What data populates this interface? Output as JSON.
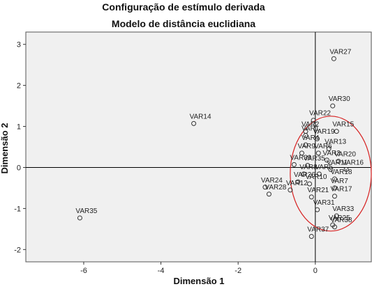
{
  "chart_data": {
    "type": "scatter",
    "title": "Configuração de estímulo derivada",
    "subtitle": "Modelo de distância euclidiana",
    "xlabel": "Dimensão 1",
    "ylabel": "Dimensão 2",
    "xlim": [
      -7.5,
      1.45
    ],
    "ylim": [
      -2.3,
      3.3
    ],
    "xticks": [
      -6,
      -4,
      -2,
      0
    ],
    "yticks": [
      -2,
      -1,
      0,
      1,
      2,
      3
    ],
    "reference_lines": {
      "x": 0,
      "y": 0
    },
    "colors": {
      "background": "#f0f0f0",
      "marker": "#333333",
      "ellipse": "#d62020",
      "reference": "#000000"
    },
    "ellipse": {
      "cx": 0.4,
      "cy": -0.15,
      "rx": 1.05,
      "ry": 1.4
    },
    "points": [
      {
        "label": "VAR27",
        "x": 0.48,
        "y": 2.65
      },
      {
        "label": "VAR30",
        "x": 0.45,
        "y": 1.5
      },
      {
        "label": "VAR14",
        "x": -3.15,
        "y": 1.07
      },
      {
        "label": "VAR22",
        "x": -0.05,
        "y": 1.15
      },
      {
        "label": "VAR2",
        "x": -0.25,
        "y": 0.88
      },
      {
        "label": "VAR15",
        "x": 0.55,
        "y": 0.88
      },
      {
        "label": "VAR1",
        "x": -0.25,
        "y": 0.78
      },
      {
        "label": "VAR19",
        "x": 0.05,
        "y": 0.7
      },
      {
        "label": "VAR4",
        "x": -0.25,
        "y": 0.55
      },
      {
        "label": "VAR13",
        "x": 0.35,
        "y": 0.46
      },
      {
        "label": "VAR9",
        "x": -0.35,
        "y": 0.35
      },
      {
        "label": "VAR6",
        "x": 0.08,
        "y": 0.35
      },
      {
        "label": "VAR3",
        "x": 0.3,
        "y": 0.18
      },
      {
        "label": "VAR20",
        "x": 0.6,
        "y": 0.15
      },
      {
        "label": "VAR39",
        "x": -0.55,
        "y": 0.07
      },
      {
        "label": "VAR35",
        "x": -0.2,
        "y": 0.05
      },
      {
        "label": "VAR11",
        "x": 0.4,
        "y": -0.05
      },
      {
        "label": "VAR16",
        "x": 0.8,
        "y": -0.05
      },
      {
        "label": "VAR8",
        "x": -0.3,
        "y": -0.16
      },
      {
        "label": "VAR5",
        "x": 0.1,
        "y": -0.16
      },
      {
        "label": "VAR18",
        "x": 0.5,
        "y": -0.28
      },
      {
        "label": "VAR26",
        "x": -0.45,
        "y": -0.35
      },
      {
        "label": "VAR24",
        "x": -1.3,
        "y": -0.48
      },
      {
        "label": "VAR10",
        "x": -0.15,
        "y": -0.4
      },
      {
        "label": "VAR7",
        "x": 0.5,
        "y": -0.5
      },
      {
        "label": "VAR12",
        "x": -0.65,
        "y": -0.55
      },
      {
        "label": "VAR28",
        "x": -1.2,
        "y": -0.65
      },
      {
        "label": "VAR17",
        "x": 0.5,
        "y": -0.7
      },
      {
        "label": "VAR21",
        "x": -0.1,
        "y": -0.72
      },
      {
        "label": "VAR35",
        "x": -6.1,
        "y": -1.23
      },
      {
        "label": "VAR31",
        "x": 0.05,
        "y": -1.03
      },
      {
        "label": "VAR33",
        "x": 0.55,
        "y": -1.18
      },
      {
        "label": "VAR25",
        "x": 0.45,
        "y": -1.4
      },
      {
        "label": "VAR38",
        "x": 0.5,
        "y": -1.45
      },
      {
        "label": "VAR37",
        "x": -0.1,
        "y": -1.68
      }
    ]
  }
}
